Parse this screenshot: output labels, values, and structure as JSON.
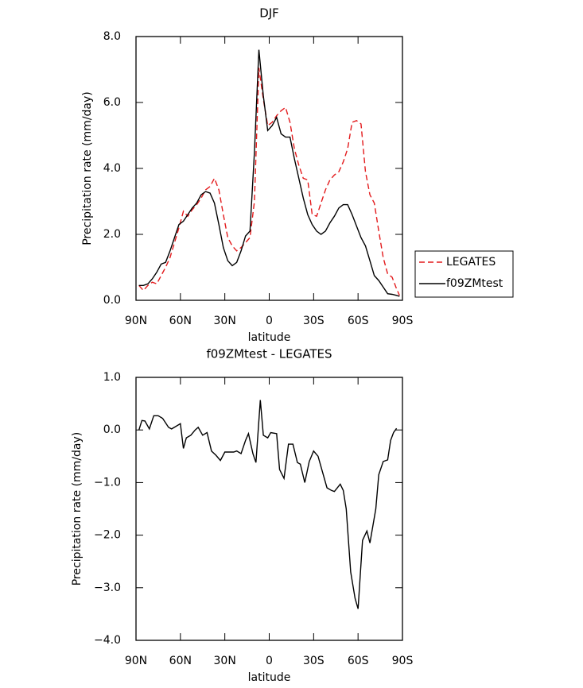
{
  "chart_data": [
    {
      "type": "line",
      "title": "DJF",
      "xlabel": "latitude",
      "ylabel": "Precipitation rate (mm/day)",
      "xlim": [
        90,
        -90
      ],
      "xticks": [
        {
          "value": 90,
          "label": "90N"
        },
        {
          "value": 60,
          "label": "60N"
        },
        {
          "value": 30,
          "label": "30N"
        },
        0,
        {
          "value": -30,
          "label": "30S"
        },
        {
          "value": -60,
          "label": "60S"
        },
        {
          "value": -90,
          "label": "90S"
        }
      ],
      "ylim": [
        0,
        8
      ],
      "yticks": [
        {
          "value": 0,
          "label": "0.0"
        },
        {
          "value": 2,
          "label": "2.0"
        },
        {
          "value": 4,
          "label": "4.0"
        },
        {
          "value": 6,
          "label": "6.0"
        },
        {
          "value": 8,
          "label": "8.0"
        }
      ],
      "legend": "right",
      "x": [
        88,
        85,
        82,
        79,
        76,
        73,
        70,
        67,
        64,
        61,
        58,
        55,
        52,
        49,
        46,
        43,
        40,
        37,
        34,
        31,
        28,
        25,
        22,
        19,
        16,
        13,
        10,
        7,
        4,
        1,
        -2,
        -5,
        -8,
        -11,
        -14,
        -17,
        -20,
        -23,
        -26,
        -29,
        -32,
        -35,
        -38,
        -41,
        -44,
        -47,
        -50,
        -53,
        -56,
        -59,
        -62,
        -65,
        -68,
        -71,
        -74,
        -77,
        -80,
        -83,
        -86,
        -88
      ],
      "series": [
        {
          "name": "LEGATES",
          "color": "#e31a1c",
          "dash": true,
          "values": [
            0.45,
            0.3,
            0.45,
            0.55,
            0.5,
            0.75,
            1.0,
            1.3,
            1.75,
            2.2,
            2.7,
            2.55,
            2.75,
            2.9,
            3.1,
            3.35,
            3.45,
            3.7,
            3.35,
            2.6,
            1.9,
            1.65,
            1.5,
            1.6,
            1.75,
            1.9,
            3.0,
            7.05,
            6.1,
            5.3,
            5.4,
            5.6,
            5.75,
            5.85,
            5.4,
            4.6,
            4.1,
            3.7,
            3.65,
            2.6,
            2.55,
            2.95,
            3.35,
            3.65,
            3.8,
            3.9,
            4.2,
            4.6,
            5.4,
            5.45,
            5.35,
            3.9,
            3.2,
            2.95,
            2.1,
            1.3,
            0.8,
            0.7,
            0.35,
            0.15
          ]
        },
        {
          "name": "f09ZMtest",
          "color": "#000000",
          "dash": false,
          "values": [
            0.45,
            0.45,
            0.5,
            0.65,
            0.85,
            1.1,
            1.15,
            1.5,
            1.9,
            2.3,
            2.4,
            2.6,
            2.8,
            2.95,
            3.2,
            3.3,
            3.25,
            2.95,
            2.3,
            1.6,
            1.2,
            1.05,
            1.15,
            1.5,
            1.95,
            2.1,
            4.5,
            7.6,
            6.2,
            5.15,
            5.3,
            5.55,
            5.05,
            4.95,
            4.95,
            4.3,
            3.7,
            3.1,
            2.6,
            2.3,
            2.1,
            2.0,
            2.1,
            2.35,
            2.55,
            2.8,
            2.9,
            2.9,
            2.6,
            2.25,
            1.9,
            1.65,
            1.2,
            0.75,
            0.6,
            0.4,
            0.2,
            0.18,
            0.15,
            0.12
          ]
        }
      ]
    },
    {
      "type": "line",
      "title": "f09ZMtest - LEGATES",
      "xlabel": "latitude",
      "ylabel": "Precipitation rate (mm/day)",
      "xlim": [
        90,
        -90
      ],
      "xticks": [
        {
          "value": 90,
          "label": "90N"
        },
        {
          "value": 60,
          "label": "60N"
        },
        {
          "value": 30,
          "label": "30N"
        },
        0,
        {
          "value": -30,
          "label": "30S"
        },
        {
          "value": -60,
          "label": "60S"
        },
        {
          "value": -90,
          "label": "90S"
        }
      ],
      "ylim": [
        -4,
        1
      ],
      "yticks": [
        {
          "value": -4,
          "label": "−4.0"
        },
        {
          "value": -3,
          "label": "−3.0"
        },
        {
          "value": -2,
          "label": "−2.0"
        },
        {
          "value": -1,
          "label": "−1.0"
        },
        {
          "value": 0,
          "label": "0.0"
        },
        {
          "value": 1,
          "label": "1.0"
        }
      ],
      "x": [
        88,
        86,
        84,
        81,
        78,
        75,
        72,
        68,
        66,
        63,
        60,
        58,
        56,
        53,
        50,
        48,
        45,
        42,
        39,
        36,
        33,
        30,
        27,
        24,
        22,
        19,
        16,
        14,
        11,
        9,
        6,
        4,
        1,
        -1,
        -5,
        -7,
        -10,
        -13,
        -16,
        -19,
        -21,
        -24,
        -27,
        -30,
        -33,
        -36,
        -39,
        -42,
        -44,
        -48,
        -50,
        -52,
        -55,
        -58,
        -60,
        -63,
        -66,
        -68,
        -72,
        -74,
        -77,
        -80,
        -82,
        -84,
        -86
      ],
      "series": [
        {
          "name": "f09ZMtest - LEGATES",
          "color": "#000000",
          "dash": false,
          "values": [
            0.0,
            0.18,
            0.17,
            0.02,
            0.27,
            0.27,
            0.22,
            0.05,
            0.02,
            0.07,
            0.12,
            -0.35,
            -0.15,
            -0.1,
            0.0,
            0.05,
            -0.1,
            -0.05,
            -0.4,
            -0.48,
            -0.58,
            -0.42,
            -0.42,
            -0.42,
            -0.4,
            -0.45,
            -0.2,
            -0.07,
            -0.45,
            -0.62,
            0.57,
            -0.1,
            -0.15,
            -0.05,
            -0.07,
            -0.75,
            -0.92,
            -0.27,
            -0.27,
            -0.62,
            -0.65,
            -1.0,
            -0.6,
            -0.4,
            -0.5,
            -0.8,
            -1.1,
            -1.15,
            -1.17,
            -1.03,
            -1.15,
            -1.5,
            -2.7,
            -3.2,
            -3.4,
            -2.1,
            -1.92,
            -2.15,
            -1.5,
            -0.85,
            -0.6,
            -0.57,
            -0.2,
            -0.05,
            0.03
          ]
        }
      ]
    }
  ]
}
